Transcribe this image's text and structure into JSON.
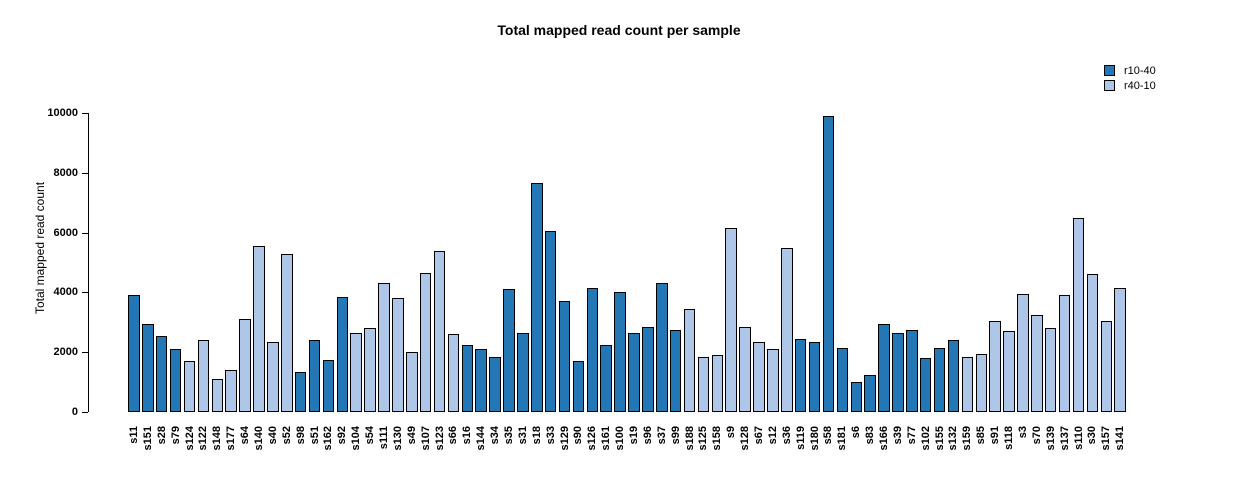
{
  "title": "Total mapped read count per sample",
  "ylabel": "Total mapped read count",
  "legend": {
    "position": "top-right",
    "items": [
      {
        "label": "r10-40",
        "color": "#2377b4"
      },
      {
        "label": "r40-10",
        "color": "#aec7e8"
      }
    ]
  },
  "chart_data": {
    "type": "bar",
    "title": "Total mapped read count per sample",
    "xlabel": "",
    "ylabel": "Total mapped read count",
    "ylim": [
      0,
      10000
    ],
    "yticks": [
      0,
      2000,
      4000,
      6000,
      8000,
      10000
    ],
    "grid": false,
    "legend_position": "top-right",
    "series_colors": {
      "r10-40": "#2377b4",
      "r40-10": "#aec7e8"
    },
    "bar_border_color": "#000000",
    "categories": [
      "s11",
      "s151",
      "s28",
      "s79",
      "s124",
      "s122",
      "s148",
      "s177",
      "s64",
      "s140",
      "s40",
      "s52",
      "s98",
      "s51",
      "s162",
      "s92",
      "s104",
      "s54",
      "s111",
      "s130",
      "s49",
      "s107",
      "s123",
      "s66",
      "s16",
      "s144",
      "s34",
      "s35",
      "s31",
      "s18",
      "s33",
      "s129",
      "s90",
      "s126",
      "s161",
      "s100",
      "s19",
      "s96",
      "s37",
      "s99",
      "s188",
      "s125",
      "s158",
      "s9",
      "s128",
      "s67",
      "s12",
      "s36",
      "s119",
      "s180",
      "s58",
      "s181",
      "s6",
      "s83",
      "s166",
      "s39",
      "s77",
      "s102",
      "s155",
      "s132",
      "s159",
      "s85",
      "s91",
      "s118",
      "s3",
      "s70",
      "s139",
      "s137",
      "s110",
      "s30",
      "s157",
      "s141"
    ],
    "values": [
      3900,
      2950,
      2550,
      2100,
      1700,
      2400,
      1100,
      1400,
      3100,
      5550,
      2350,
      5300,
      1350,
      2400,
      1750,
      3850,
      2650,
      2800,
      4300,
      3800,
      2000,
      4650,
      5400,
      2600,
      2250,
      2100,
      1850,
      4100,
      2650,
      7650,
      6050,
      3700,
      1700,
      4150,
      2250,
      4000,
      2650,
      2850,
      4300,
      2750,
      3450,
      1850,
      1900,
      6150,
      2850,
      2350,
      2100,
      5500,
      2450,
      2350,
      9900,
      2150,
      1000,
      1250,
      2950,
      2650,
      2750,
      1800,
      2150,
      2400,
      1850,
      1950,
      3050,
      2700,
      3950,
      3250,
      2800,
      3900,
      6500,
      4600,
      3050,
      4150
    ],
    "groups": [
      "r10-40",
      "r10-40",
      "r10-40",
      "r10-40",
      "r40-10",
      "r40-10",
      "r40-10",
      "r40-10",
      "r40-10",
      "r40-10",
      "r40-10",
      "r40-10",
      "r10-40",
      "r10-40",
      "r10-40",
      "r10-40",
      "r40-10",
      "r40-10",
      "r40-10",
      "r40-10",
      "r40-10",
      "r40-10",
      "r40-10",
      "r40-10",
      "r10-40",
      "r10-40",
      "r10-40",
      "r10-40",
      "r10-40",
      "r10-40",
      "r10-40",
      "r10-40",
      "r10-40",
      "r10-40",
      "r10-40",
      "r10-40",
      "r10-40",
      "r10-40",
      "r10-40",
      "r10-40",
      "r40-10",
      "r40-10",
      "r40-10",
      "r40-10",
      "r40-10",
      "r40-10",
      "r40-10",
      "r40-10",
      "r10-40",
      "r10-40",
      "r10-40",
      "r10-40",
      "r10-40",
      "r10-40",
      "r10-40",
      "r10-40",
      "r10-40",
      "r10-40",
      "r10-40",
      "r10-40",
      "r40-10",
      "r40-10",
      "r40-10",
      "r40-10",
      "r40-10",
      "r40-10",
      "r40-10",
      "r40-10",
      "r40-10",
      "r40-10",
      "r40-10",
      "r40-10"
    ]
  }
}
